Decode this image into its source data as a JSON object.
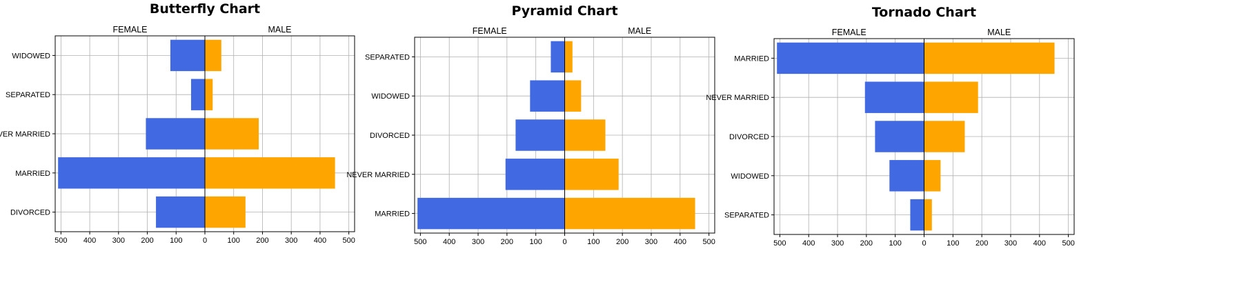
{
  "colors": {
    "female": "#4169E1",
    "male": "#FFA500"
  },
  "chart_data": [
    {
      "type": "bar",
      "orientation": "horizontal-diverging",
      "title": "Butterfly Chart",
      "left_label": "FEMALE",
      "right_label": "MALE",
      "categories": [
        "WIDOWED",
        "SEPARATED",
        "NEVER MARRIED",
        "MARRIED",
        "DIVORCED"
      ],
      "series": [
        {
          "name": "FEMALE",
          "values": [
            120,
            48,
            205,
            510,
            170
          ]
        },
        {
          "name": "MALE",
          "values": [
            57,
            27,
            187,
            452,
            141
          ]
        }
      ],
      "xlim": [
        -520,
        520
      ],
      "xticks": [
        -500,
        -400,
        -300,
        -200,
        -100,
        0,
        100,
        200,
        300,
        400,
        500
      ],
      "xtick_labels": [
        "500",
        "400",
        "300",
        "200",
        "100",
        "0",
        "100",
        "200",
        "300",
        "400",
        "500"
      ],
      "grid": true
    },
    {
      "type": "bar",
      "orientation": "horizontal-diverging",
      "title": "Pyramid Chart",
      "left_label": "FEMALE",
      "right_label": "MALE",
      "categories": [
        "SEPARATED",
        "WIDOWED",
        "DIVORCED",
        "NEVER MARRIED",
        "MARRIED"
      ],
      "series": [
        {
          "name": "FEMALE",
          "values": [
            48,
            120,
            170,
            205,
            510
          ]
        },
        {
          "name": "MALE",
          "values": [
            27,
            57,
            141,
            187,
            452
          ]
        }
      ],
      "xlim": [
        -520,
        520
      ],
      "xticks": [
        -500,
        -400,
        -300,
        -200,
        -100,
        0,
        100,
        200,
        300,
        400,
        500
      ],
      "xtick_labels": [
        "500",
        "400",
        "300",
        "200",
        "100",
        "0",
        "100",
        "200",
        "300",
        "400",
        "500"
      ],
      "grid": true
    },
    {
      "type": "bar",
      "orientation": "horizontal-diverging",
      "title": "Tornado Chart",
      "left_label": "FEMALE",
      "right_label": "MALE",
      "categories": [
        "MARRIED",
        "NEVER MARRIED",
        "DIVORCED",
        "WIDOWED",
        "SEPARATED"
      ],
      "series": [
        {
          "name": "FEMALE",
          "values": [
            510,
            205,
            170,
            120,
            48
          ]
        },
        {
          "name": "MALE",
          "values": [
            452,
            187,
            141,
            57,
            27
          ]
        }
      ],
      "xlim": [
        -520,
        520
      ],
      "xticks": [
        -500,
        -400,
        -300,
        -200,
        -100,
        0,
        100,
        200,
        300,
        400,
        500
      ],
      "xtick_labels": [
        "500",
        "400",
        "300",
        "200",
        "100",
        "0",
        "100",
        "200",
        "300",
        "400",
        "500"
      ],
      "grid": true
    }
  ]
}
